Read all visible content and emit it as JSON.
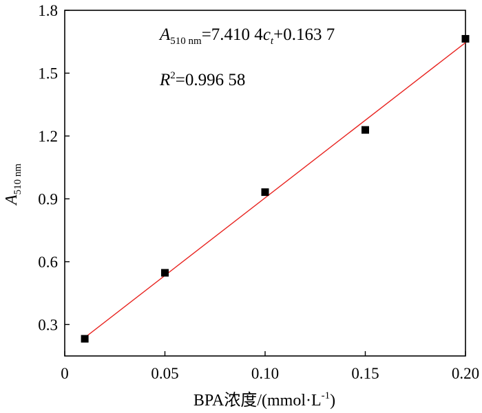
{
  "chart_data": {
    "type": "scatter",
    "xlabel": "BPA浓度/(mmol·L-1)",
    "xlabel_parts": {
      "main": "BPA浓度/(mmol·L",
      "sup": "-1",
      "close": ")"
    },
    "ylabel_parts": {
      "main": "A",
      "sub": "510 nm"
    },
    "xlim": [
      0,
      0.2
    ],
    "ylim": [
      0.15,
      1.8
    ],
    "x_ticks": [
      {
        "value": 0,
        "label": "0"
      },
      {
        "value": 0.05,
        "label": "0.05"
      },
      {
        "value": 0.1,
        "label": "0.10"
      },
      {
        "value": 0.15,
        "label": "0.15"
      },
      {
        "value": 0.2,
        "label": "0.20"
      }
    ],
    "y_ticks": [
      {
        "value": 0.3,
        "label": "0.3"
      },
      {
        "value": 0.6,
        "label": "0.6"
      },
      {
        "value": 0.9,
        "label": "0.9"
      },
      {
        "value": 1.2,
        "label": "1.2"
      },
      {
        "value": 1.5,
        "label": "1.5"
      },
      {
        "value": 1.8,
        "label": "1.8"
      }
    ],
    "points": [
      {
        "x": 0.01,
        "y": 0.232
      },
      {
        "x": 0.05,
        "y": 0.547
      },
      {
        "x": 0.1,
        "y": 0.932
      },
      {
        "x": 0.15,
        "y": 1.229
      },
      {
        "x": 0.2,
        "y": 1.664
      }
    ],
    "fit": {
      "slope": 7.4104,
      "intercept": 0.1637,
      "x_range": [
        0.01,
        0.2
      ],
      "color": "#e8231f"
    },
    "marker_color": "#000000",
    "equation_parts": {
      "a": "A",
      "a_sub": "510 nm",
      "mid": "=7.410 4",
      "c": "c",
      "c_sub": "t",
      "end": "+0.163 7"
    },
    "r2_parts": {
      "r": "R",
      "sup": "2",
      "end": "=0.996 58"
    },
    "grid": false,
    "legend": "none"
  }
}
